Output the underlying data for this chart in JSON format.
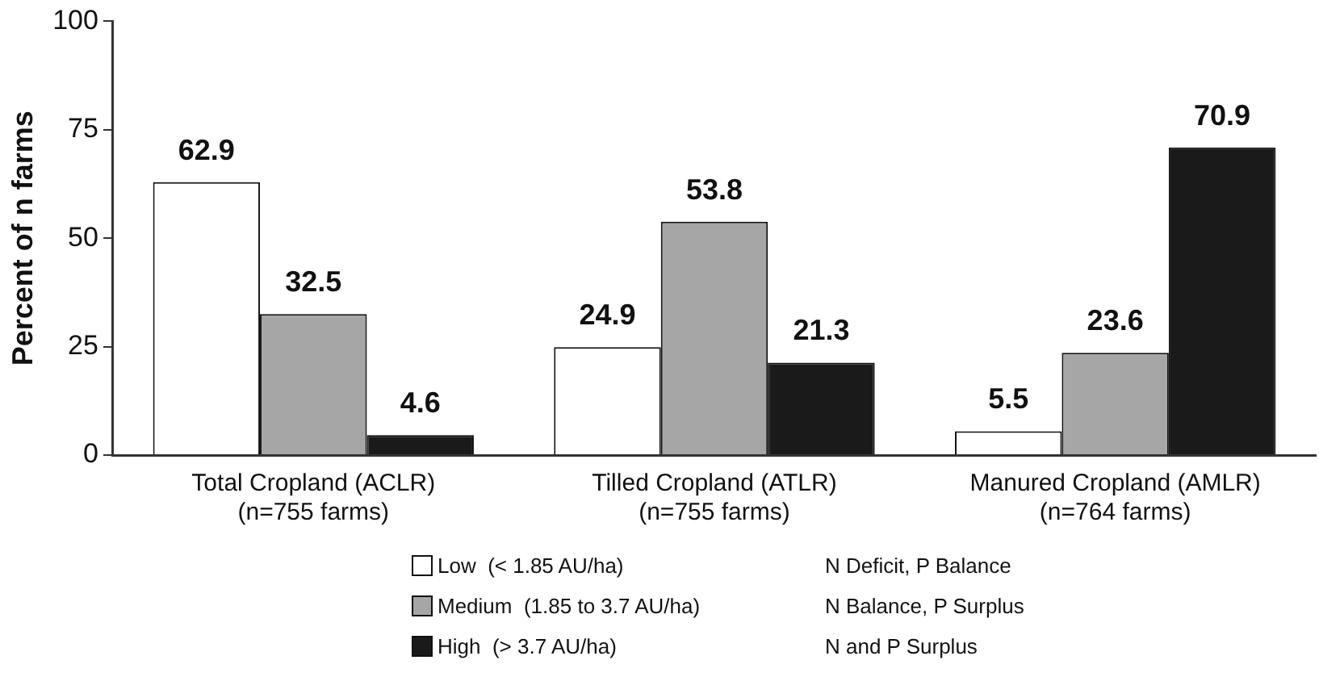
{
  "chart_data": {
    "type": "bar",
    "ylabel": "Percent of n farms",
    "categories": [
      "Total Cropland (ACLR)\n(n=755 farms)",
      "Tilled Cropland (ATLR)\n(n=755 farms)",
      "Manured Cropland (AMLR)\n(n=764 farms)"
    ],
    "series": [
      {
        "name": "Low  (< 1.85 AU/ha)",
        "color": "#ffffff",
        "values": [
          62.9,
          24.9,
          5.5
        ]
      },
      {
        "name": "Medium  (1.85 to 3.7 AU/ha)",
        "color": "#a6a6a6",
        "values": [
          32.5,
          53.8,
          23.6
        ]
      },
      {
        "name": "High  (> 3.7 AU/ha)",
        "color": "#1a1a1a",
        "values": [
          4.6,
          21.3,
          70.9
        ]
      }
    ],
    "annotations": [
      "N Deficit, P Balance",
      "N Balance, P Surplus",
      "N and P Surplus"
    ],
    "ylim": [
      0,
      100
    ],
    "yticks": [
      0,
      25,
      50,
      75,
      100
    ],
    "grid": false,
    "legend": "bottom",
    "data_labels": true
  }
}
